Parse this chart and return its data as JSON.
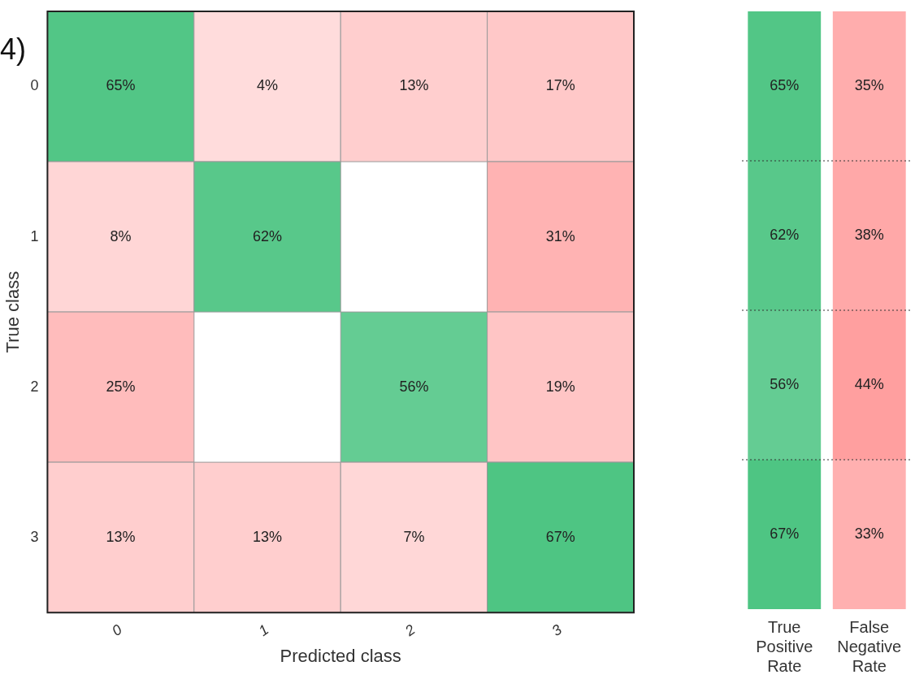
{
  "chart_data": [
    {
      "type": "heatmap",
      "xlabel": "Predicted class",
      "ylabel": "True class",
      "annotations": [
        "4)"
      ],
      "categories": [
        "0",
        "1",
        "2",
        "3"
      ],
      "y_categories": [
        "0",
        "1",
        "2",
        "3"
      ],
      "colors": [
        "#4cc482",
        "#ff7b7b"
      ],
      "cells": [
        [
          65,
          4,
          13,
          17
        ],
        [
          8,
          62,
          null,
          31
        ],
        [
          25,
          null,
          56,
          19
        ],
        [
          13,
          13,
          7,
          67
        ]
      ],
      "cell_labels": [
        [
          "65%",
          "4%",
          "13%",
          "17%"
        ],
        [
          "8%",
          "62%",
          null,
          "31%"
        ],
        [
          "25%",
          null,
          "56%",
          "19%"
        ],
        [
          "13%",
          "13%",
          "7%",
          "67%"
        ]
      ]
    },
    {
      "type": "heatmap",
      "tick_labels": "x",
      "categories": [
        "True Positive Rate",
        "False Negative Rate"
      ],
      "y_categories": [
        null,
        null,
        null,
        null
      ],
      "colors": [
        "#4cc482",
        "#ff7b7b"
      ],
      "cells": [
        [
          65,
          35
        ],
        [
          62,
          38
        ],
        [
          56,
          44
        ],
        [
          67,
          33
        ]
      ],
      "cell_labels": [
        [
          "65%",
          "35%"
        ],
        [
          "62%",
          "38%"
        ],
        [
          "56%",
          "44%"
        ],
        [
          "67%",
          "33%"
        ]
      ]
    }
  ]
}
